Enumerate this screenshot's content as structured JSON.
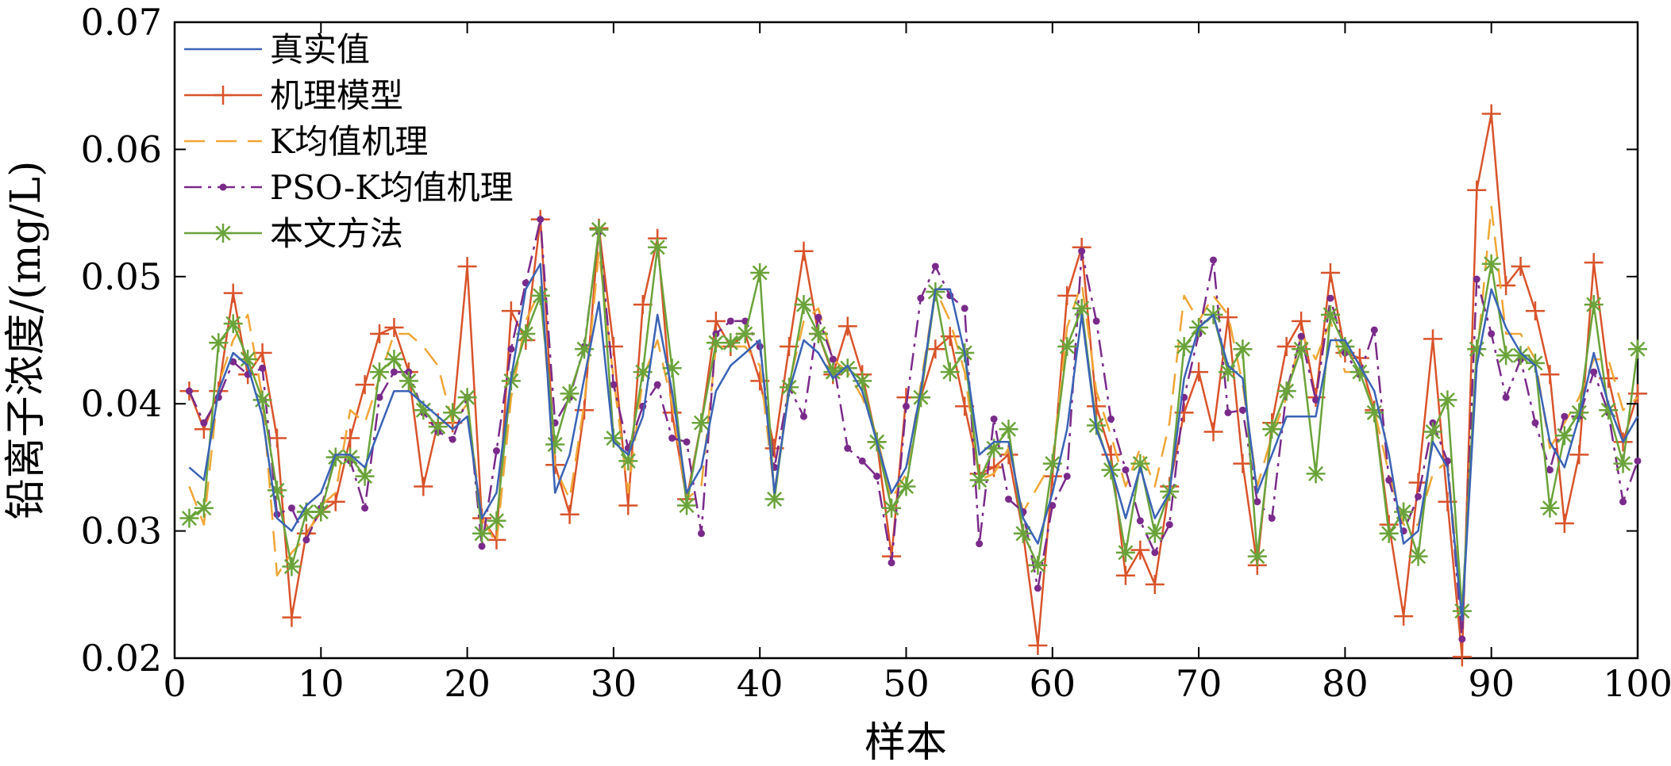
{
  "chart_data": {
    "type": "line",
    "title": "",
    "xlabel": "样本",
    "ylabel": "铅离子浓度/(mg/L)",
    "xlim": [
      0,
      100
    ],
    "ylim": [
      0.02,
      0.07
    ],
    "xticks": [
      0,
      10,
      20,
      30,
      40,
      50,
      60,
      70,
      80,
      90,
      100
    ],
    "xtick_labels": [
      "0",
      "10",
      "20",
      "30",
      "40",
      "50",
      "60",
      "70",
      "80",
      "90",
      "100"
    ],
    "yticks": [
      0.02,
      0.03,
      0.04,
      0.05,
      0.06,
      0.07
    ],
    "ytick_labels": [
      "0.02",
      "0.03",
      "0.04",
      "0.05",
      "0.06",
      "0.07"
    ],
    "grid": false,
    "legend_position": "top-left",
    "x": [
      1,
      2,
      3,
      4,
      5,
      6,
      7,
      8,
      9,
      10,
      11,
      12,
      13,
      14,
      15,
      16,
      17,
      18,
      19,
      20,
      21,
      22,
      23,
      24,
      25,
      26,
      27,
      28,
      29,
      30,
      31,
      32,
      33,
      34,
      35,
      36,
      37,
      38,
      39,
      40,
      41,
      42,
      43,
      44,
      45,
      46,
      47,
      48,
      49,
      50,
      51,
      52,
      53,
      54,
      55,
      56,
      57,
      58,
      59,
      60,
      61,
      62,
      63,
      64,
      65,
      66,
      67,
      68,
      69,
      70,
      71,
      72,
      73,
      74,
      75,
      76,
      77,
      78,
      79,
      80,
      81,
      82,
      83,
      84,
      85,
      86,
      87,
      88,
      89,
      90,
      91,
      92,
      93,
      94,
      95,
      96,
      97,
      98,
      99,
      100
    ],
    "series": [
      {
        "name": "真实值",
        "color": "#3a63b5",
        "style": "solid",
        "marker": "none",
        "values": [
          0.035,
          0.034,
          0.041,
          0.044,
          0.043,
          0.039,
          0.031,
          0.03,
          0.032,
          0.033,
          0.036,
          0.036,
          0.035,
          0.038,
          0.041,
          0.041,
          0.04,
          0.039,
          0.038,
          0.039,
          0.031,
          0.033,
          0.042,
          0.049,
          0.051,
          0.033,
          0.036,
          0.042,
          0.048,
          0.037,
          0.036,
          0.039,
          0.047,
          0.041,
          0.033,
          0.035,
          0.041,
          0.043,
          0.044,
          0.045,
          0.033,
          0.041,
          0.045,
          0.044,
          0.042,
          0.043,
          0.041,
          0.037,
          0.033,
          0.035,
          0.041,
          0.049,
          0.049,
          0.044,
          0.036,
          0.037,
          0.037,
          0.031,
          0.029,
          0.033,
          0.038,
          0.047,
          0.038,
          0.035,
          0.031,
          0.035,
          0.031,
          0.033,
          0.042,
          0.046,
          0.047,
          0.043,
          0.042,
          0.033,
          0.036,
          0.039,
          0.039,
          0.039,
          0.045,
          0.045,
          0.043,
          0.041,
          0.036,
          0.029,
          0.03,
          0.037,
          0.035,
          0.023,
          0.043,
          0.049,
          0.046,
          0.044,
          0.043,
          0.037,
          0.035,
          0.039,
          0.044,
          0.04,
          0.037,
          0.039
        ]
      },
      {
        "name": "机理模型",
        "color": "#d9532a",
        "style": "solid",
        "marker": "plus",
        "values": [
          0.041,
          0.038,
          0.041,
          0.0487,
          0.0423,
          0.044,
          0.0373,
          0.0232,
          0.0298,
          0.0315,
          0.0323,
          0.0373,
          0.0415,
          0.0455,
          0.046,
          0.0425,
          0.0335,
          0.0385,
          0.0385,
          0.0508,
          0.031,
          0.0293,
          0.0473,
          0.045,
          0.0545,
          0.0352,
          0.0313,
          0.0395,
          0.0538,
          0.0445,
          0.032,
          0.0478,
          0.053,
          0.0393,
          0.0325,
          0.0385,
          0.0465,
          0.0445,
          0.0455,
          0.0418,
          0.0365,
          0.0445,
          0.052,
          0.0455,
          0.0423,
          0.0461,
          0.0423,
          0.037,
          0.028,
          0.0405,
          0.0405,
          0.0443,
          0.0453,
          0.0398,
          0.0345,
          0.035,
          0.036,
          0.0298,
          0.021,
          0.0343,
          0.0485,
          0.0523,
          0.0398,
          0.036,
          0.0265,
          0.0285,
          0.0258,
          0.0335,
          0.0393,
          0.0425,
          0.0378,
          0.0468,
          0.0353,
          0.0273,
          0.0385,
          0.0445,
          0.0465,
          0.0405,
          0.0503,
          0.044,
          0.0436,
          0.0395,
          0.0305,
          0.0233,
          0.0338,
          0.0451,
          0.0323,
          0.0201,
          0.0568,
          0.0628,
          0.0493,
          0.0508,
          0.0473,
          0.0423,
          0.0306,
          0.036,
          0.0511,
          0.042,
          0.037,
          0.0408
        ]
      },
      {
        "name": "K均值机理",
        "color": "#f0a635",
        "style": "dashed",
        "marker": "none",
        "values": [
          0.0335,
          0.0305,
          0.0415,
          0.045,
          0.047,
          0.0405,
          0.0265,
          0.0283,
          0.0295,
          0.032,
          0.033,
          0.0395,
          0.0385,
          0.042,
          0.0455,
          0.0455,
          0.0445,
          0.043,
          0.0385,
          0.04,
          0.031,
          0.029,
          0.0405,
          0.0465,
          0.049,
          0.035,
          0.0325,
          0.04,
          0.052,
          0.042,
          0.033,
          0.042,
          0.045,
          0.04,
          0.0325,
          0.0335,
          0.0445,
          0.0445,
          0.0445,
          0.043,
          0.033,
          0.0415,
          0.0465,
          0.0475,
          0.0435,
          0.0425,
          0.0405,
          0.0375,
          0.0325,
          0.0345,
          0.0415,
          0.049,
          0.0465,
          0.0425,
          0.034,
          0.0345,
          0.0365,
          0.0315,
          0.0335,
          0.0355,
          0.046,
          0.0495,
          0.041,
          0.0375,
          0.0335,
          0.0365,
          0.0335,
          0.0385,
          0.0485,
          0.0465,
          0.0485,
          0.047,
          0.0415,
          0.0335,
          0.0375,
          0.0405,
          0.0455,
          0.0435,
          0.0465,
          0.0425,
          0.0425,
          0.0395,
          0.0345,
          0.0305,
          0.0305,
          0.0345,
          0.0355,
          0.0235,
          0.0435,
          0.0555,
          0.0455,
          0.0455,
          0.0435,
          0.0365,
          0.0385,
          0.0405,
          0.0435,
          0.0435,
          0.0395,
          0.0405
        ]
      },
      {
        "name": "PSO-K均值机理",
        "color": "#7a2a8a",
        "style": "dashdot",
        "marker": "dot",
        "values": [
          0.041,
          0.0385,
          0.0405,
          0.0433,
          0.0423,
          0.0428,
          0.0313,
          0.0318,
          0.0293,
          0.0318,
          0.0358,
          0.0355,
          0.0318,
          0.0405,
          0.0425,
          0.0425,
          0.0393,
          0.0378,
          0.0372,
          0.0405,
          0.0288,
          0.0363,
          0.0443,
          0.0495,
          0.0545,
          0.0385,
          0.0405,
          0.0445,
          0.0535,
          0.0415,
          0.0365,
          0.0398,
          0.0415,
          0.0373,
          0.037,
          0.0298,
          0.0455,
          0.0465,
          0.0465,
          0.0445,
          0.035,
          0.0413,
          0.039,
          0.0468,
          0.0435,
          0.0365,
          0.0355,
          0.0343,
          0.0275,
          0.0398,
          0.0483,
          0.0508,
          0.0485,
          0.0475,
          0.029,
          0.0388,
          0.0325,
          0.0315,
          0.0255,
          0.032,
          0.0343,
          0.052,
          0.0465,
          0.0388,
          0.0348,
          0.0308,
          0.0283,
          0.0305,
          0.0405,
          0.0455,
          0.0513,
          0.0393,
          0.0395,
          0.0323,
          0.031,
          0.041,
          0.0453,
          0.0403,
          0.0483,
          0.044,
          0.0423,
          0.0458,
          0.034,
          0.03,
          0.0327,
          0.0385,
          0.0355,
          0.0215,
          0.0498,
          0.0455,
          0.0405,
          0.0435,
          0.0385,
          0.0348,
          0.039,
          0.039,
          0.0425,
          0.0393,
          0.0323,
          0.0355
        ]
      },
      {
        "name": "本文方法",
        "color": "#6aa33a",
        "style": "solid",
        "marker": "asterisk",
        "values": [
          0.031,
          0.0318,
          0.0448,
          0.0463,
          0.0435,
          0.0403,
          0.0332,
          0.0272,
          0.0315,
          0.0315,
          0.0358,
          0.0358,
          0.0343,
          0.0425,
          0.0435,
          0.0418,
          0.0395,
          0.0382,
          0.0393,
          0.0405,
          0.0298,
          0.0308,
          0.0418,
          0.0455,
          0.0485,
          0.0368,
          0.0408,
          0.0443,
          0.0537,
          0.0373,
          0.0355,
          0.0425,
          0.0523,
          0.0428,
          0.032,
          0.0385,
          0.0448,
          0.0448,
          0.0455,
          0.0503,
          0.0325,
          0.0413,
          0.0478,
          0.0455,
          0.0425,
          0.0428,
          0.0418,
          0.037,
          0.0318,
          0.0335,
          0.0405,
          0.0488,
          0.0425,
          0.044,
          0.034,
          0.0365,
          0.038,
          0.0298,
          0.0273,
          0.0353,
          0.0445,
          0.0475,
          0.0383,
          0.0348,
          0.0283,
          0.0353,
          0.0298,
          0.0331,
          0.0445,
          0.046,
          0.047,
          0.0425,
          0.0443,
          0.028,
          0.038,
          0.041,
          0.0443,
          0.0345,
          0.047,
          0.0445,
          0.0425,
          0.0393,
          0.0298,
          0.0315,
          0.028,
          0.0378,
          0.0403,
          0.0237,
          0.0443,
          0.051,
          0.0438,
          0.0438,
          0.0432,
          0.0318,
          0.0375,
          0.0393,
          0.0478,
          0.0395,
          0.0353,
          0.0443
        ]
      }
    ]
  }
}
